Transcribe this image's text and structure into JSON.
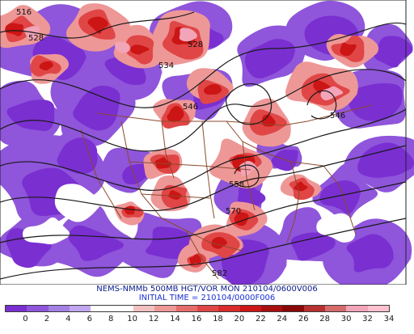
{
  "map": {
    "title": "NEMS-NMMb 500MB HGT/VOR MON 210104/0600V006",
    "initial_time": "INITIAL TIME = 210104/0000F006",
    "contour_labels": [
      "516",
      "528",
      "528",
      "534",
      "546",
      "546",
      "558",
      "570",
      "582"
    ],
    "colors": {
      "background": "#ffffff",
      "contour": "#1a1a1a",
      "border": "#8b4a2b",
      "water": "#f4f4ff"
    },
    "colorbar": {
      "tick_labels": [
        "0",
        "2",
        "4",
        "6",
        "8",
        "10",
        "12",
        "14",
        "16",
        "18",
        "20",
        "22",
        "24",
        "26",
        "28",
        "30",
        "32",
        "34"
      ],
      "swatch_colors": [
        "#7a2fd1",
        "#8f55db",
        "#a47fe4",
        "#bfa6ee",
        "#ffffff",
        "#ffffff",
        "#f3c0c0",
        "#ee9797",
        "#e66b6b",
        "#e04646",
        "#d92b2b",
        "#cc1515",
        "#a90f0f",
        "#8a0808",
        "#b83030",
        "#d46a6a",
        "#f2a4b8",
        "#ffc0d0"
      ]
    }
  }
}
